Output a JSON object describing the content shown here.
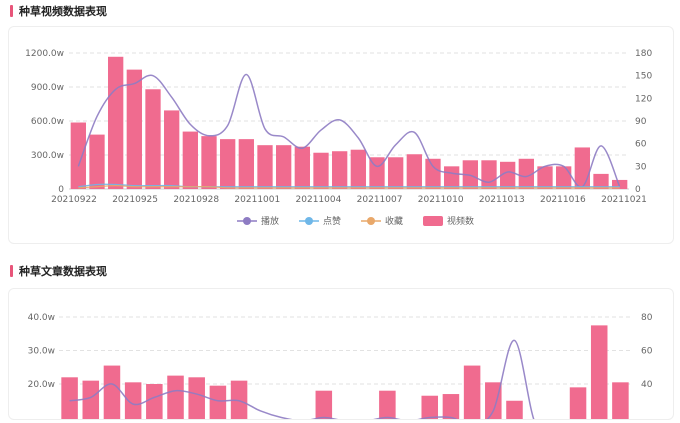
{
  "sections": [
    {
      "title": "种草视频数据表现"
    },
    {
      "title": "种草文章数据表现"
    }
  ],
  "legend": {
    "items": [
      {
        "label": "播放",
        "color": "#8e7cc3"
      },
      {
        "label": "点赞",
        "color": "#6fb7e8"
      },
      {
        "label": "收藏",
        "color": "#e9a86a"
      },
      {
        "label": "视频数",
        "color": "#f06b8f"
      }
    ]
  },
  "chart_data": [
    {
      "type": "bar",
      "title": "",
      "bar_color": "#f06b8f",
      "line_color": "#8e7cc3",
      "left_axis": {
        "ticks": [
          "0",
          "300.0w",
          "600.0w",
          "900.0w",
          "1200.0w"
        ],
        "max": 1200
      },
      "right_axis": {
        "ticks": [
          "0",
          "30",
          "60",
          "90",
          "120",
          "150",
          "180"
        ],
        "max": 180
      },
      "x_tick_labels": [
        "20210922",
        "20210925",
        "20210928",
        "20211001",
        "20211004",
        "20211007",
        "20211010",
        "20211013",
        "20211016",
        "20211021"
      ],
      "series": [
        {
          "name": "视频数",
          "axis": "right",
          "values": [
            88,
            72,
            175,
            158,
            132,
            104,
            76,
            70,
            66,
            66,
            58,
            58,
            56,
            48,
            50,
            52,
            42,
            42,
            46,
            40,
            30,
            38,
            38,
            36,
            40,
            30,
            30,
            55,
            20,
            12
          ]
        },
        {
          "name": "播放",
          "axis": "left",
          "values": [
            200,
            640,
            880,
            930,
            1000,
            810,
            570,
            470,
            560,
            1010,
            530,
            460,
            360,
            520,
            610,
            450,
            200,
            390,
            500,
            200,
            140,
            120,
            60,
            150,
            110,
            200,
            200,
            20,
            380,
            20
          ]
        },
        {
          "name": "点赞",
          "axis": "left",
          "values": [
            20,
            40,
            40,
            30,
            30,
            30,
            20,
            20,
            20,
            20,
            20,
            20,
            20,
            20,
            20,
            20,
            20,
            20,
            20,
            20,
            20,
            20,
            20,
            20,
            20,
            20,
            20,
            20,
            20,
            20
          ]
        },
        {
          "name": "收藏",
          "axis": "left",
          "values": [
            10,
            20,
            30,
            20,
            20,
            20,
            20,
            20,
            10,
            10,
            10,
            10,
            10,
            10,
            10,
            10,
            10,
            10,
            10,
            10,
            10,
            10,
            10,
            10,
            10,
            10,
            10,
            10,
            10,
            10
          ]
        }
      ]
    },
    {
      "type": "bar",
      "title": "",
      "bar_color": "#f06b8f",
      "line_color": "#8e7cc3",
      "left_axis": {
        "ticks": [
          "20.0w",
          "30.0w",
          "40.0w"
        ],
        "values": [
          20,
          30,
          40
        ]
      },
      "right_axis": {
        "ticks": [
          "40",
          "60",
          "80"
        ],
        "values": [
          40,
          60,
          80
        ]
      },
      "series": [
        {
          "name": "视频数",
          "axis": "right",
          "values": [
            44,
            42,
            51,
            41,
            40,
            45,
            44,
            39,
            42,
            15,
            12,
            8,
            36,
            10,
            12,
            36,
            14,
            33,
            34,
            51,
            41,
            30,
            8,
            10,
            38,
            75,
            41
          ]
        },
        {
          "name": "播放",
          "axis": "left",
          "values": [
            15,
            16,
            20,
            14,
            16,
            18,
            17,
            15,
            15,
            12,
            10,
            9,
            10,
            9,
            9,
            10,
            9,
            10,
            10,
            8,
            12,
            33,
            8,
            9,
            8,
            9,
            9
          ]
        }
      ]
    }
  ]
}
